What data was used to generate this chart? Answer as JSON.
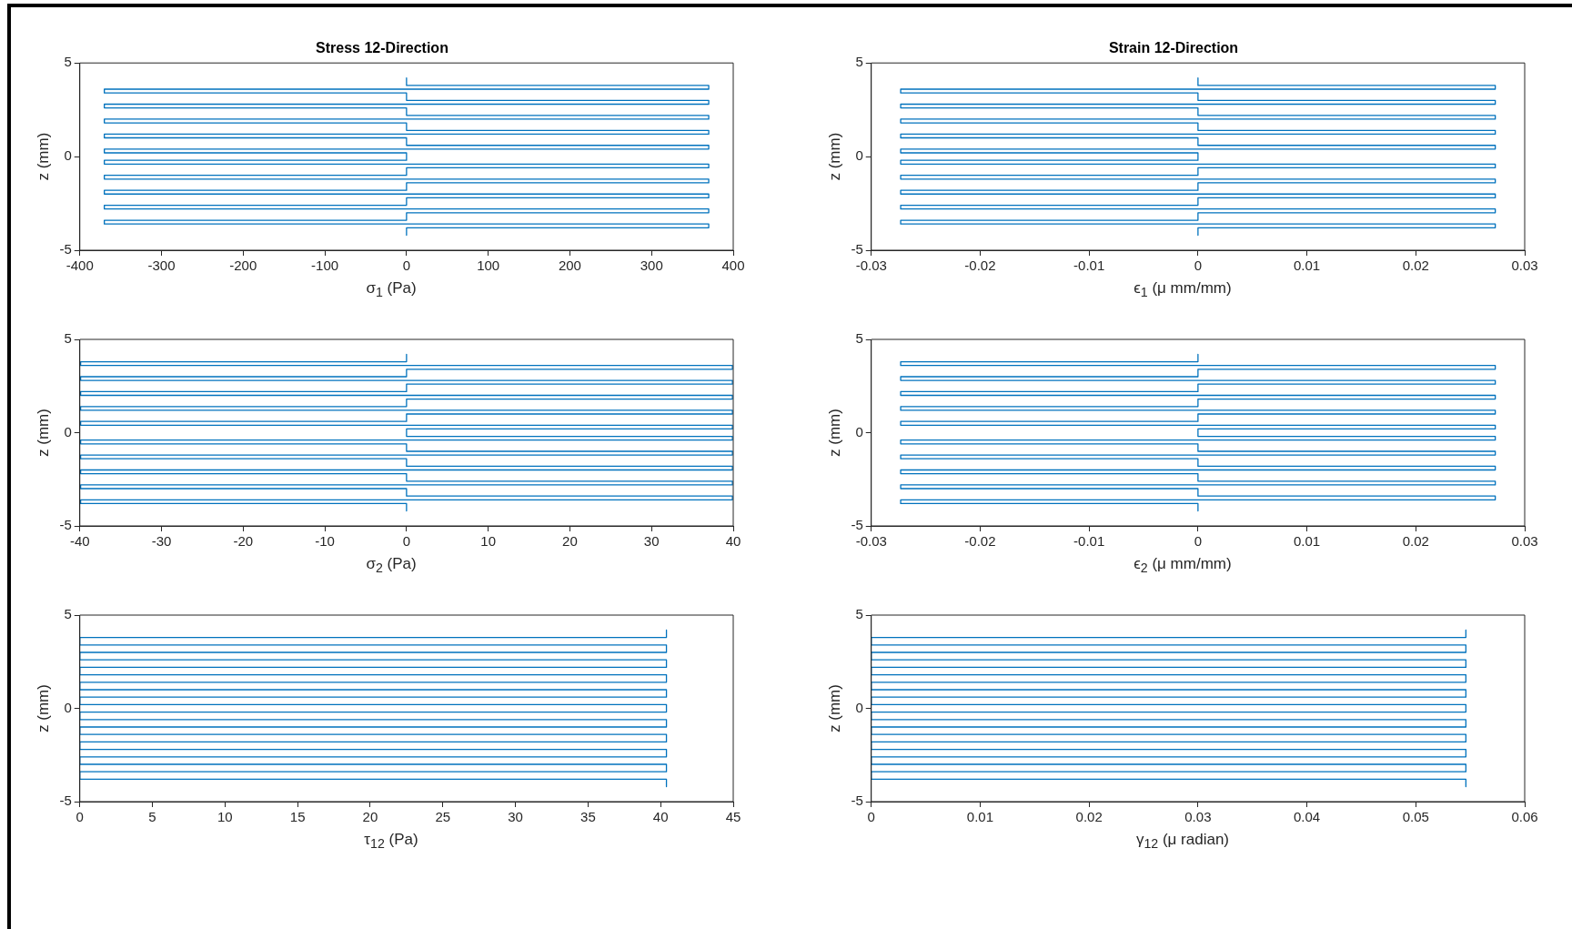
{
  "chart_data": [
    {
      "type": "line",
      "title": "Stress 12-Direction",
      "xlabel": "σ$_{1}$ (Pa)",
      "ylabel": "z (mm)",
      "xlim": [
        -400,
        400
      ],
      "xticks": [
        -400,
        -300,
        -200,
        -100,
        0,
        100,
        200,
        300,
        400
      ],
      "ylim": [
        -5,
        5
      ],
      "yticks": [
        -5,
        0,
        5
      ],
      "series": [
        {
          "color": "#0072bd",
          "x": [
            0,
            0,
            370,
            370,
            0,
            -370,
            -370,
            0,
            0,
            370,
            370,
            0,
            -370,
            -370,
            0,
            0,
            370,
            370,
            0,
            -370,
            -370,
            0,
            0,
            370,
            370,
            0,
            -370,
            -370,
            0,
            0,
            370,
            370,
            0,
            -370,
            -370,
            0,
            0,
            -370,
            -370,
            0,
            370,
            370,
            0,
            0,
            -370,
            -370,
            0,
            370,
            370,
            0,
            0,
            -370,
            -370,
            0,
            370,
            370,
            0,
            0,
            -370,
            -370,
            0,
            370,
            370,
            0,
            0,
            -370,
            -370,
            0,
            370,
            370,
            0,
            0
          ],
          "values": [
            4.2,
            3.8,
            3.8,
            3.6,
            3.6,
            3.6,
            3.4,
            3.4,
            3.0,
            3.0,
            2.8,
            2.8,
            2.8,
            2.6,
            2.6,
            2.2,
            2.2,
            2.0,
            2.0,
            2.0,
            1.8,
            1.8,
            1.4,
            1.4,
            1.2,
            1.2,
            1.2,
            1.0,
            1.0,
            0.6,
            0.6,
            0.4,
            0.4,
            0.4,
            0.2,
            0.2,
            -0.2,
            -0.2,
            -0.4,
            -0.4,
            -0.4,
            -0.6,
            -0.6,
            -1.0,
            -1.0,
            -1.2,
            -1.2,
            -1.2,
            -1.4,
            -1.4,
            -1.8,
            -1.8,
            -2.0,
            -2.0,
            -2.0,
            -2.2,
            -2.2,
            -2.6,
            -2.6,
            -2.8,
            -2.8,
            -2.8,
            -3.0,
            -3.0,
            -3.4,
            -3.4,
            -3.6,
            -3.6,
            -3.6,
            -3.8,
            -3.8,
            -4.2
          ]
        }
      ]
    },
    {
      "type": "line",
      "title": "Strain 12-Direction",
      "xlabel": "ϵ$_{1}$ (μ mm/mm)",
      "ylabel": "z (mm)",
      "xlim": [
        -0.03,
        0.03
      ],
      "xticks": [
        -0.03,
        -0.02,
        -0.01,
        0,
        0.01,
        0.02,
        0.03
      ],
      "ylim": [
        -5,
        5
      ],
      "yticks": [
        -5,
        0,
        5
      ],
      "series": [
        {
          "color": "#0072bd",
          "x": [
            0,
            0,
            0.0273,
            0.0273,
            0,
            -0.0273,
            -0.0273,
            0,
            0,
            0.0273,
            0.0273,
            0,
            -0.0273,
            -0.0273,
            0,
            0,
            0.0273,
            0.0273,
            0,
            -0.0273,
            -0.0273,
            0,
            0,
            0.0273,
            0.0273,
            0,
            -0.0273,
            -0.0273,
            0,
            0,
            0.0273,
            0.0273,
            0,
            -0.0273,
            -0.0273,
            0,
            0,
            -0.0273,
            -0.0273,
            0,
            0.0273,
            0.0273,
            0,
            0,
            -0.0273,
            -0.0273,
            0,
            0.0273,
            0.0273,
            0,
            0,
            -0.0273,
            -0.0273,
            0,
            0.0273,
            0.0273,
            0,
            0,
            -0.0273,
            -0.0273,
            0,
            0.0273,
            0.0273,
            0,
            0,
            -0.0273,
            -0.0273,
            0,
            0.0273,
            0.0273,
            0,
            0
          ],
          "values": [
            4.2,
            3.8,
            3.8,
            3.6,
            3.6,
            3.6,
            3.4,
            3.4,
            3.0,
            3.0,
            2.8,
            2.8,
            2.8,
            2.6,
            2.6,
            2.2,
            2.2,
            2.0,
            2.0,
            2.0,
            1.8,
            1.8,
            1.4,
            1.4,
            1.2,
            1.2,
            1.2,
            1.0,
            1.0,
            0.6,
            0.6,
            0.4,
            0.4,
            0.4,
            0.2,
            0.2,
            -0.2,
            -0.2,
            -0.4,
            -0.4,
            -0.4,
            -0.6,
            -0.6,
            -1.0,
            -1.0,
            -1.2,
            -1.2,
            -1.2,
            -1.4,
            -1.4,
            -1.8,
            -1.8,
            -2.0,
            -2.0,
            -2.0,
            -2.2,
            -2.2,
            -2.6,
            -2.6,
            -2.8,
            -2.8,
            -2.8,
            -3.0,
            -3.0,
            -3.4,
            -3.4,
            -3.6,
            -3.6,
            -3.6,
            -3.8,
            -3.8,
            -4.2
          ]
        }
      ]
    },
    {
      "type": "line",
      "xlabel": "σ$_{2}$ (Pa)",
      "ylabel": "z (mm)",
      "xlim": [
        -40,
        40
      ],
      "xticks": [
        -40,
        -30,
        -20,
        -10,
        0,
        10,
        20,
        30,
        40
      ],
      "ylim": [
        -5,
        5
      ],
      "yticks": [
        -5,
        0,
        5
      ],
      "series": [
        {
          "color": "#0072bd",
          "x": [
            0,
            0,
            -39.9,
            -39.9,
            0,
            39.9,
            39.9,
            0,
            0,
            -39.9,
            -39.9,
            0,
            39.9,
            39.9,
            0,
            0,
            -39.9,
            -39.9,
            0,
            39.9,
            39.9,
            0,
            0,
            -39.9,
            -39.9,
            0,
            39.9,
            39.9,
            0,
            0,
            -39.9,
            -39.9,
            0,
            39.9,
            39.9,
            0,
            0,
            39.9,
            39.9,
            0,
            -39.9,
            -39.9,
            0,
            0,
            39.9,
            39.9,
            0,
            -39.9,
            -39.9,
            0,
            0,
            39.9,
            39.9,
            0,
            -39.9,
            -39.9,
            0,
            0,
            39.9,
            39.9,
            0,
            -39.9,
            -39.9,
            0,
            0,
            39.9,
            39.9,
            0,
            -39.9,
            -39.9,
            0,
            0
          ],
          "values": [
            4.2,
            3.8,
            3.8,
            3.6,
            3.6,
            3.6,
            3.4,
            3.4,
            3.0,
            3.0,
            2.8,
            2.8,
            2.8,
            2.6,
            2.6,
            2.2,
            2.2,
            2.0,
            2.0,
            2.0,
            1.8,
            1.8,
            1.4,
            1.4,
            1.2,
            1.2,
            1.2,
            1.0,
            1.0,
            0.6,
            0.6,
            0.4,
            0.4,
            0.4,
            0.2,
            0.2,
            -0.2,
            -0.2,
            -0.4,
            -0.4,
            -0.4,
            -0.6,
            -0.6,
            -1.0,
            -1.0,
            -1.2,
            -1.2,
            -1.2,
            -1.4,
            -1.4,
            -1.8,
            -1.8,
            -2.0,
            -2.0,
            -2.0,
            -2.2,
            -2.2,
            -2.6,
            -2.6,
            -2.8,
            -2.8,
            -2.8,
            -3.0,
            -3.0,
            -3.4,
            -3.4,
            -3.6,
            -3.6,
            -3.6,
            -3.8,
            -3.8,
            -4.2
          ]
        }
      ]
    },
    {
      "type": "line",
      "xlabel": "ϵ$_{2}$ (μ mm/mm)",
      "ylabel": "z (mm)",
      "xlim": [
        -0.03,
        0.03
      ],
      "xticks": [
        -0.03,
        -0.02,
        -0.01,
        0,
        0.01,
        0.02,
        0.03
      ],
      "ylim": [
        -5,
        5
      ],
      "yticks": [
        -5,
        0,
        5
      ],
      "series": [
        {
          "color": "#0072bd",
          "x": [
            0,
            0,
            -0.0273,
            -0.0273,
            0,
            0.0273,
            0.0273,
            0,
            0,
            -0.0273,
            -0.0273,
            0,
            0.0273,
            0.0273,
            0,
            0,
            -0.0273,
            -0.0273,
            0,
            0.0273,
            0.0273,
            0,
            0,
            -0.0273,
            -0.0273,
            0,
            0.0273,
            0.0273,
            0,
            0,
            -0.0273,
            -0.0273,
            0,
            0.0273,
            0.0273,
            0,
            0,
            0.0273,
            0.0273,
            0,
            -0.0273,
            -0.0273,
            0,
            0,
            0.0273,
            0.0273,
            0,
            -0.0273,
            -0.0273,
            0,
            0,
            0.0273,
            0.0273,
            0,
            -0.0273,
            -0.0273,
            0,
            0,
            0.0273,
            0.0273,
            0,
            -0.0273,
            -0.0273,
            0,
            0,
            0.0273,
            0.0273,
            0,
            -0.0273,
            -0.0273,
            0,
            0
          ],
          "values": [
            4.2,
            3.8,
            3.8,
            3.6,
            3.6,
            3.6,
            3.4,
            3.4,
            3.0,
            3.0,
            2.8,
            2.8,
            2.8,
            2.6,
            2.6,
            2.2,
            2.2,
            2.0,
            2.0,
            2.0,
            1.8,
            1.8,
            1.4,
            1.4,
            1.2,
            1.2,
            1.2,
            1.0,
            1.0,
            0.6,
            0.6,
            0.4,
            0.4,
            0.4,
            0.2,
            0.2,
            -0.2,
            -0.2,
            -0.4,
            -0.4,
            -0.4,
            -0.6,
            -0.6,
            -1.0,
            -1.0,
            -1.2,
            -1.2,
            -1.2,
            -1.4,
            -1.4,
            -1.8,
            -1.8,
            -2.0,
            -2.0,
            -2.0,
            -2.2,
            -2.2,
            -2.6,
            -2.6,
            -2.8,
            -2.8,
            -2.8,
            -3.0,
            -3.0,
            -3.4,
            -3.4,
            -3.6,
            -3.6,
            -3.6,
            -3.8,
            -3.8,
            -4.2
          ]
        }
      ]
    },
    {
      "type": "line",
      "xlabel": "τ$_{12}$ (Pa)",
      "ylabel": "z (mm)",
      "xlim": [
        0,
        45
      ],
      "xticks": [
        0,
        5,
        10,
        15,
        20,
        25,
        30,
        35,
        40,
        45
      ],
      "ylim": [
        -5,
        5
      ],
      "yticks": [
        -5,
        0,
        5
      ],
      "series": [
        {
          "color": "#0072bd",
          "x": [
            40.4,
            40.4,
            0,
            0,
            40.4,
            40.4,
            0,
            0,
            40.4,
            40.4,
            0,
            0,
            40.4,
            40.4,
            0,
            0,
            40.4,
            40.4,
            0,
            0,
            40.4,
            40.4,
            0,
            0,
            40.4,
            40.4,
            0,
            0,
            40.4,
            40.4,
            0,
            0,
            40.4,
            40.4,
            0,
            0,
            40.4,
            40.4,
            0,
            0,
            40.4,
            40.4
          ],
          "values": [
            4.2,
            3.8,
            3.8,
            3.4,
            3.4,
            3.0,
            3.0,
            2.6,
            2.6,
            2.2,
            2.2,
            1.8,
            1.8,
            1.4,
            1.4,
            1.0,
            1.0,
            0.6,
            0.6,
            0.2,
            0.2,
            -0.2,
            -0.2,
            -0.6,
            -0.6,
            -1.0,
            -1.0,
            -1.4,
            -1.4,
            -1.8,
            -1.8,
            -2.2,
            -2.2,
            -2.6,
            -2.6,
            -3.0,
            -3.0,
            -3.4,
            -3.4,
            -3.8,
            -3.8,
            -4.2
          ]
        }
      ]
    },
    {
      "type": "line",
      "xlabel": "γ$_{12}$ (μ radian)",
      "ylabel": "z (mm)",
      "xlim": [
        0,
        0.06
      ],
      "xticks": [
        0,
        0.01,
        0.02,
        0.03,
        0.04,
        0.05,
        0.06
      ],
      "ylim": [
        -5,
        5
      ],
      "yticks": [
        -5,
        0,
        5
      ],
      "series": [
        {
          "color": "#0072bd",
          "x": [
            0.0546,
            0.0546,
            0,
            0,
            0.0546,
            0.0546,
            0,
            0,
            0.0546,
            0.0546,
            0,
            0,
            0.0546,
            0.0546,
            0,
            0,
            0.0546,
            0.0546,
            0,
            0,
            0.0546,
            0.0546,
            0,
            0,
            0.0546,
            0.0546,
            0,
            0,
            0.0546,
            0.0546,
            0,
            0,
            0.0546,
            0.0546,
            0,
            0,
            0.0546,
            0.0546,
            0,
            0,
            0.0546,
            0.0546
          ],
          "values": [
            4.2,
            3.8,
            3.8,
            3.4,
            3.4,
            3.0,
            3.0,
            2.6,
            2.6,
            2.2,
            2.2,
            1.8,
            1.8,
            1.4,
            1.4,
            1.0,
            1.0,
            0.6,
            0.6,
            0.2,
            0.2,
            -0.2,
            -0.2,
            -0.6,
            -0.6,
            -1.0,
            -1.0,
            -1.4,
            -1.4,
            -1.8,
            -1.8,
            -2.2,
            -2.2,
            -2.6,
            -2.6,
            -3.0,
            -3.0,
            -3.4,
            -3.4,
            -3.8,
            -3.8,
            -4.2
          ]
        }
      ]
    }
  ]
}
